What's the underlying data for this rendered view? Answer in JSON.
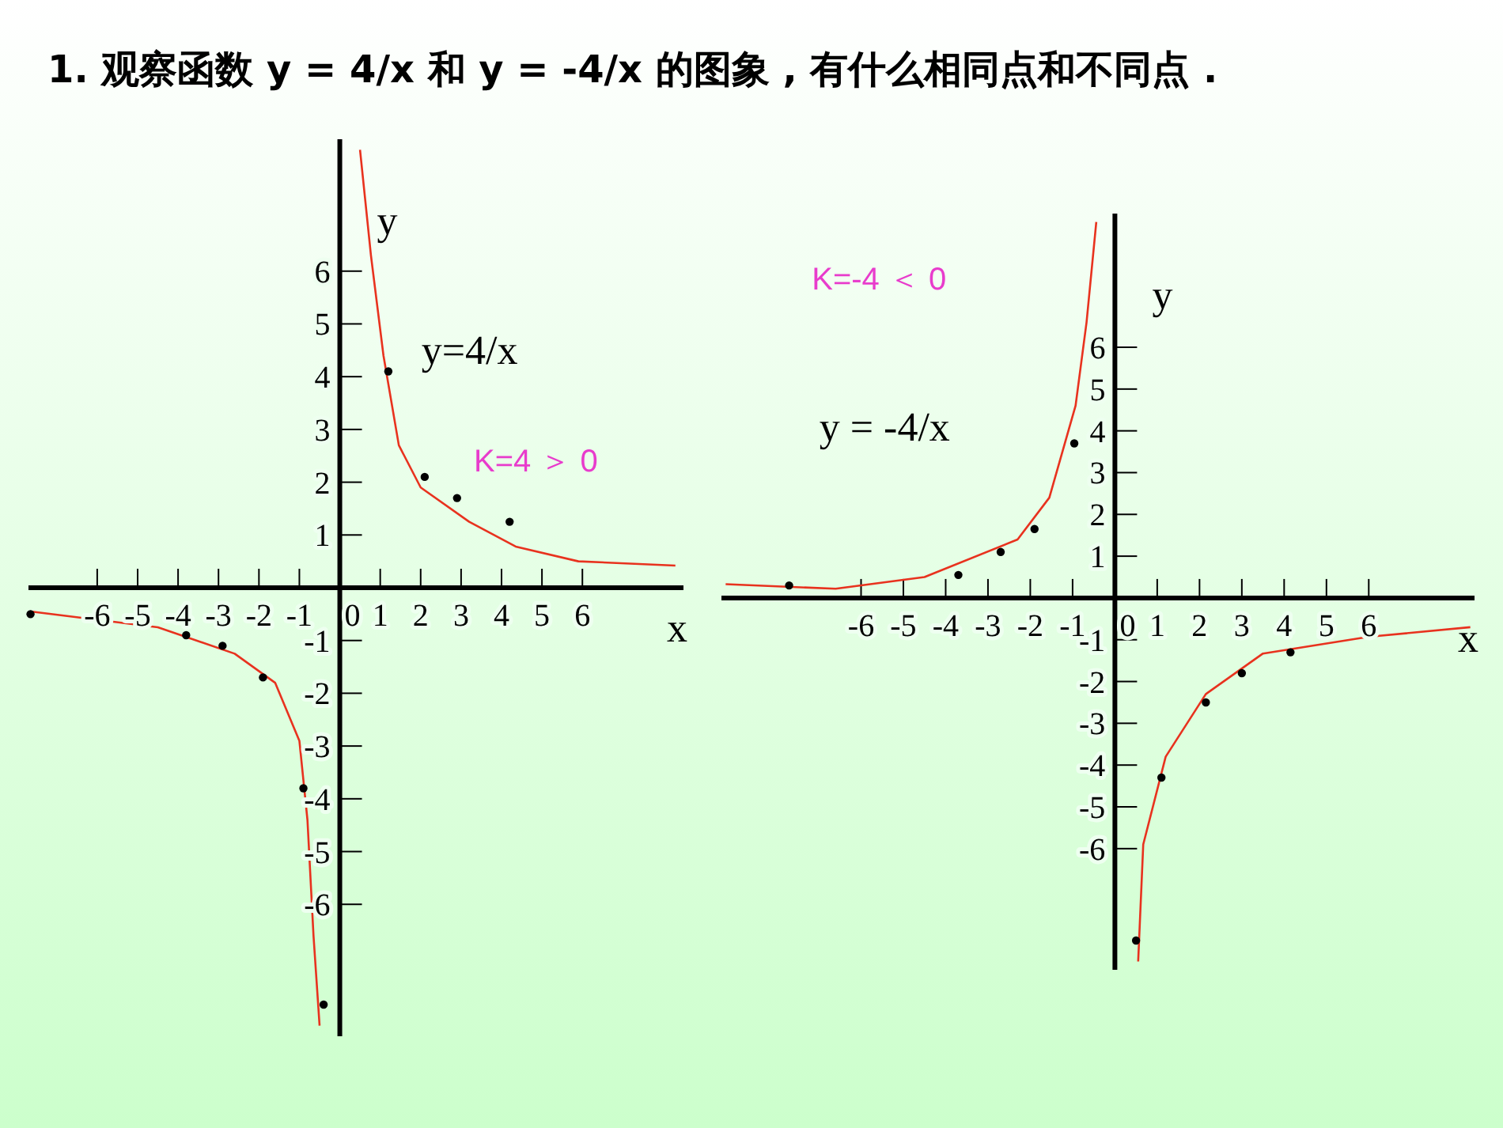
{
  "chart_data": [
    {
      "type": "line",
      "title": "1. 观察函数 y = 4/x 和 y = -4/x 的图象 , 有什么相同点和不同点 .",
      "xlabel": "x",
      "ylabel": "y",
      "xlim": [
        -7.7,
        8.5
      ],
      "ylim": [
        -8.5,
        8.5
      ],
      "xticks": [
        -6,
        -5,
        -4,
        -3,
        -2,
        -1,
        0,
        1,
        2,
        3,
        4,
        5,
        6
      ],
      "yticks": [
        -6,
        -5,
        -4,
        -3,
        -2,
        -1,
        1,
        2,
        3,
        4,
        5,
        6
      ],
      "annotations": [
        "K=4 ＞ 0"
      ],
      "series": [
        {
          "name": "y=4/x",
          "type": "line",
          "color": "#e8321e",
          "x": [
            0.5,
            0.77,
            1.08,
            1.46,
            2.0,
            3.2,
            4.35,
            5.9,
            8.3
          ],
          "values": [
            8.3,
            6.3,
            4.4,
            2.7,
            1.9,
            1.25,
            0.78,
            0.5,
            0.42
          ]
        },
        {
          "type": "line",
          "color": "#e8321e",
          "x": [
            -7.65,
            -4.5,
            -2.6,
            -1.6,
            -1.0,
            -0.8,
            -0.65,
            -0.5
          ],
          "values": [
            -0.45,
            -0.75,
            -1.25,
            -1.8,
            -2.9,
            -4.4,
            -6.6,
            -8.3
          ]
        },
        {
          "type": "scatter",
          "color": "#000000",
          "x": [
            1.2,
            2.1,
            2.9,
            4.2,
            -7.65,
            -3.8,
            -2.9,
            -1.9,
            -0.9,
            -0.4
          ],
          "values": [
            4.1,
            2.1,
            1.7,
            1.25,
            -0.5,
            -0.9,
            -1.1,
            -1.7,
            -3.8,
            -7.9
          ]
        }
      ]
    },
    {
      "type": "line",
      "xlabel": "x",
      "ylabel": "y",
      "xlim": [
        -9.3,
        8.5
      ],
      "ylim": [
        -8.9,
        9.2
      ],
      "xticks": [
        -6,
        -5,
        -4,
        -3,
        -2,
        -1,
        0,
        1,
        2,
        3,
        4,
        5,
        6
      ],
      "yticks": [
        -6,
        -5,
        -4,
        -3,
        -2,
        -1,
        1,
        2,
        3,
        4,
        5,
        6
      ],
      "annotations": [
        "K=-4 ＜ 0"
      ],
      "series": [
        {
          "name": "y = -4/x",
          "type": "line",
          "color": "#e8321e",
          "x": [
            -9.2,
            -6.6,
            -4.5,
            -2.3,
            -1.55,
            -0.93,
            -0.67,
            -0.44
          ],
          "values": [
            0.33,
            0.22,
            0.5,
            1.4,
            2.4,
            4.6,
            6.6,
            9.0
          ]
        },
        {
          "type": "line",
          "color": "#e8321e",
          "x": [
            0.55,
            0.67,
            1.2,
            2.15,
            3.5,
            6.0,
            8.4
          ],
          "values": [
            -8.7,
            -5.9,
            -3.8,
            -2.3,
            -1.33,
            -0.93,
            -0.7
          ]
        },
        {
          "type": "scatter",
          "color": "#000000",
          "x": [
            -7.7,
            -3.7,
            -2.7,
            -1.9,
            -0.96,
            0.5,
            1.1,
            2.15,
            3.0,
            4.15
          ],
          "values": [
            0.3,
            0.55,
            1.1,
            1.65,
            3.7,
            -8.2,
            -4.3,
            -2.5,
            -1.8,
            -1.3
          ]
        }
      ]
    }
  ]
}
